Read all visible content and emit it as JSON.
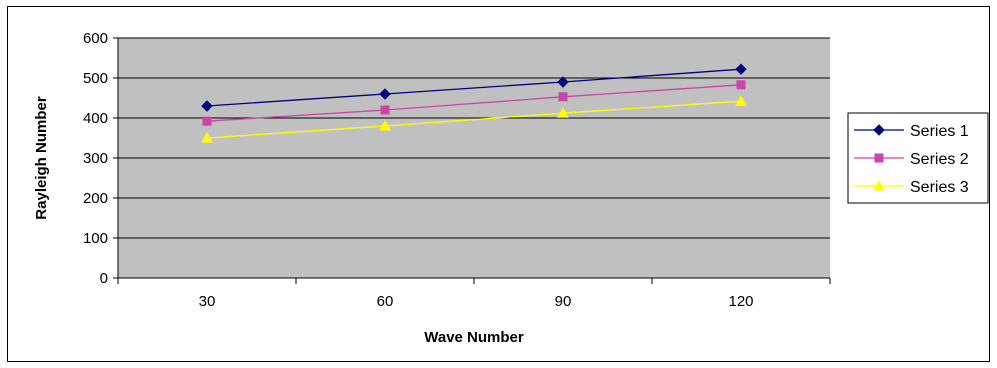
{
  "chart_data": {
    "type": "line",
    "title": "",
    "xlabel": "Wave Number",
    "ylabel": "Rayleigh Number",
    "categories": [
      "30",
      "60",
      "90",
      "120"
    ],
    "ylim": [
      0,
      600
    ],
    "yticks": [
      "0",
      "100",
      "200",
      "300",
      "400",
      "500",
      "600"
    ],
    "grid": "horizontal",
    "legend": "right",
    "plot_background": "#c0c0c0",
    "series": [
      {
        "name": "Series 1",
        "values": [
          430,
          460,
          490,
          522
        ],
        "color": "#000080",
        "marker": "diamond"
      },
      {
        "name": "Series 2",
        "values": [
          392,
          420,
          453,
          483
        ],
        "color": "#cc44aa",
        "marker": "square"
      },
      {
        "name": "Series 3",
        "values": [
          350,
          380,
          412,
          442
        ],
        "color": "#ffff00",
        "marker": "triangle"
      }
    ]
  }
}
